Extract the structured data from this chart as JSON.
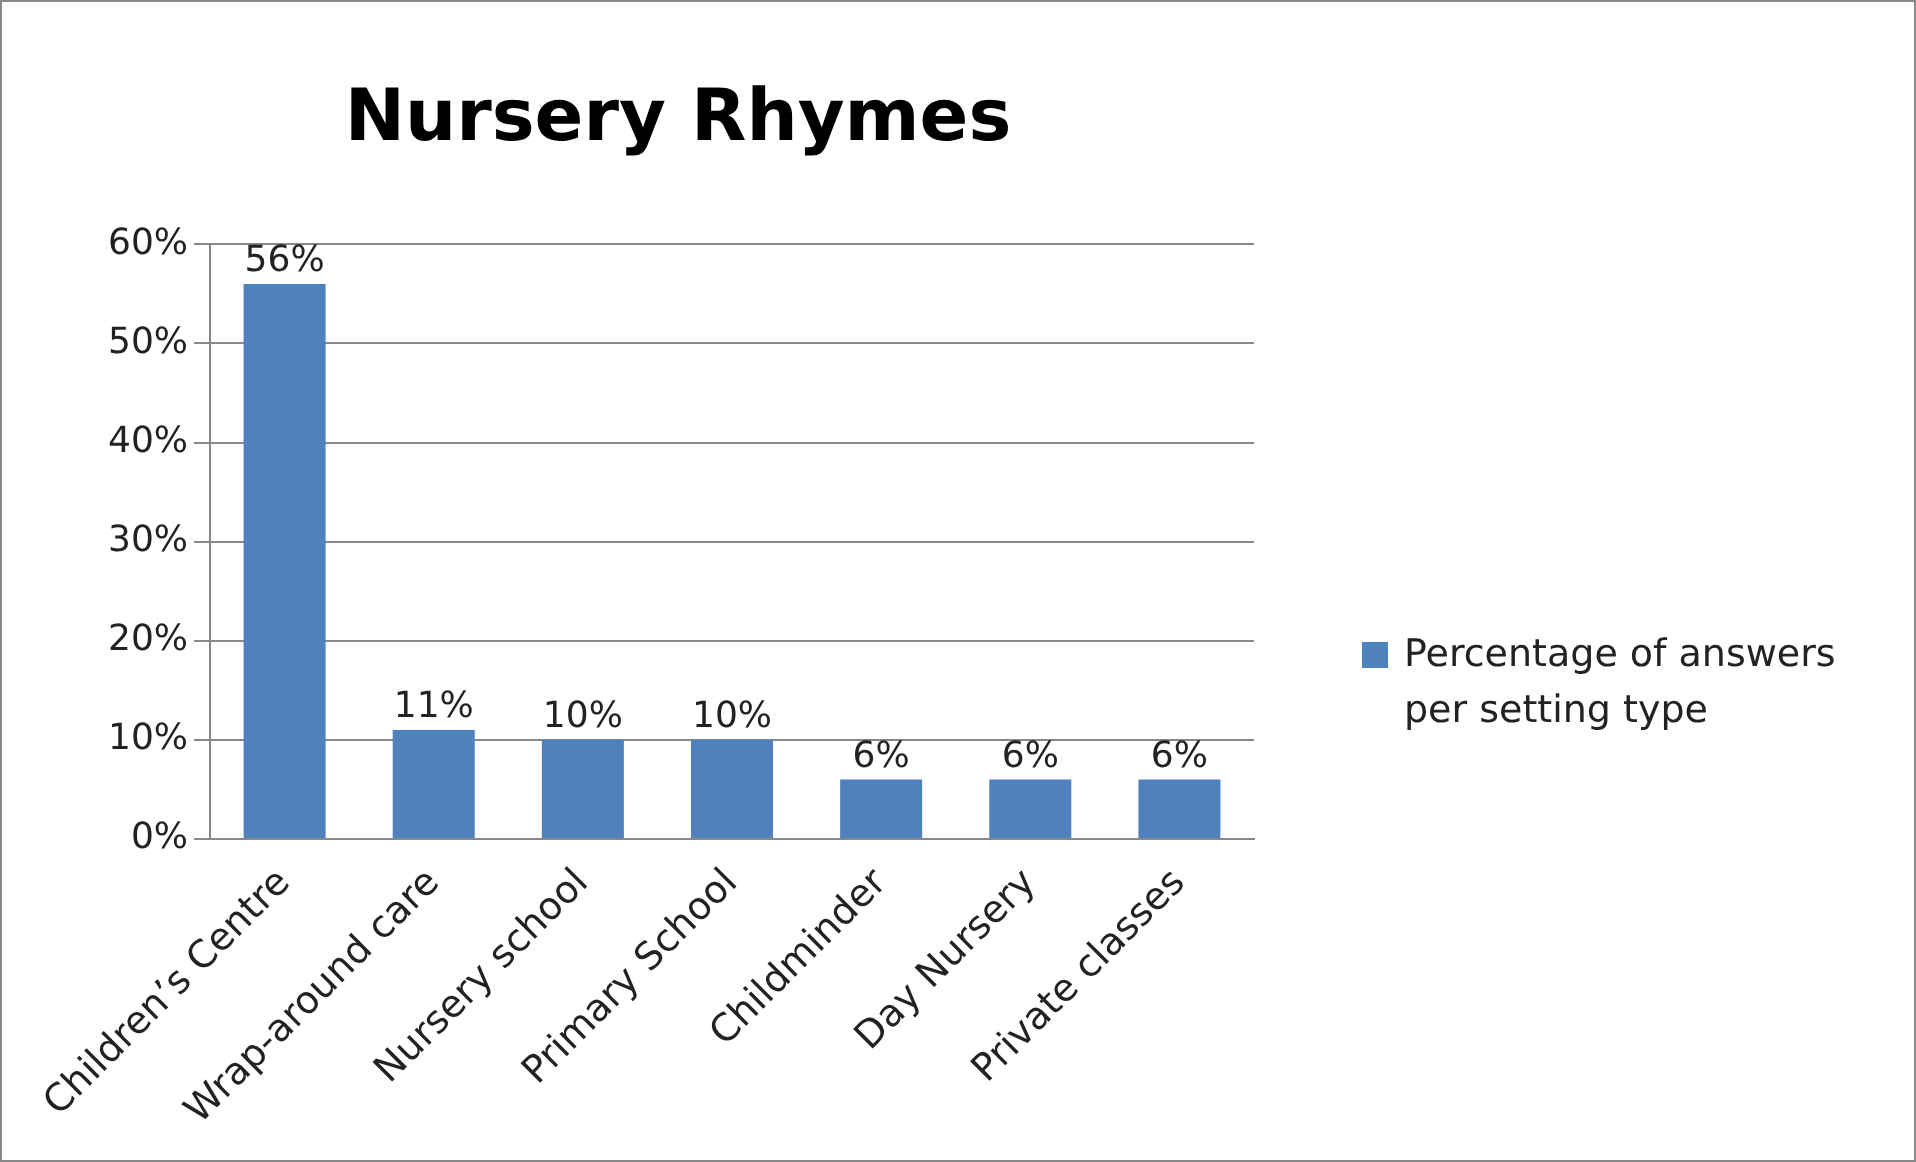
{
  "chart_data": {
    "type": "bar",
    "title": "Nursery Rhymes",
    "categories": [
      "Children’s Centre",
      "Wrap-around care",
      "Nursery school",
      "Primary School",
      "Childminder",
      "Day Nursery",
      "Private classes"
    ],
    "series": [
      {
        "name": "Percentage of answers per setting type",
        "color": "#4f81bd",
        "values": [
          56,
          11,
          10,
          10,
          6,
          6,
          6
        ],
        "value_labels": [
          "56%",
          "11%",
          "10%",
          "10%",
          "6%",
          "6%",
          "6%"
        ]
      }
    ],
    "ylim": [
      0,
      60
    ],
    "yticks": [
      {
        "value": 0,
        "label": "0%"
      },
      {
        "value": 10,
        "label": "10%"
      },
      {
        "value": 20,
        "label": "20%"
      },
      {
        "value": 30,
        "label": "30%"
      },
      {
        "value": 40,
        "label": "40%"
      },
      {
        "value": 50,
        "label": "50%"
      },
      {
        "value": 60,
        "label": "60%"
      }
    ],
    "grid": "y",
    "legend": "right"
  }
}
